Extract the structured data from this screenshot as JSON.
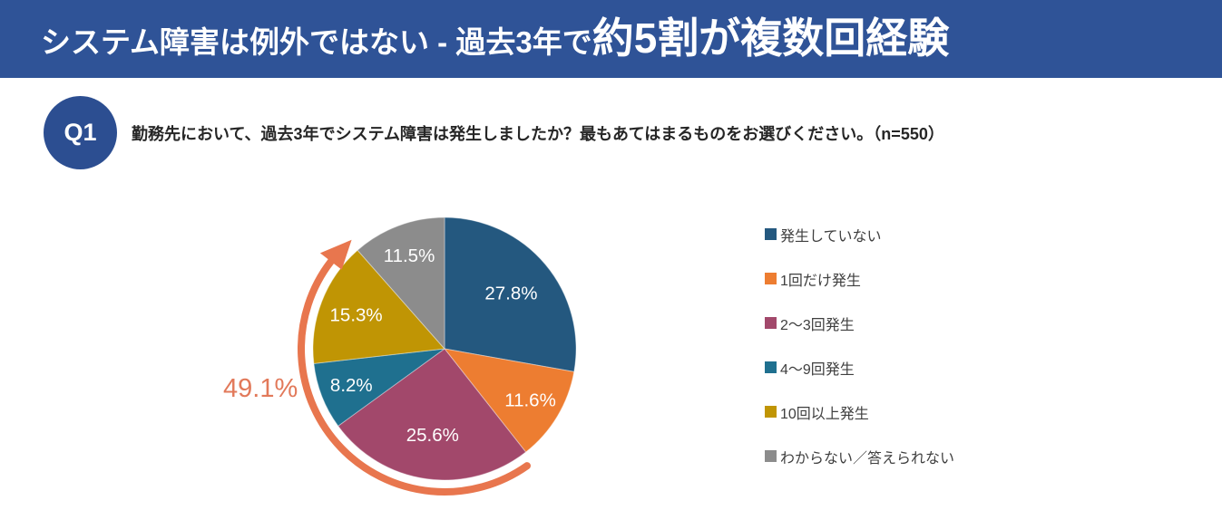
{
  "header": {
    "title_regular": "システム障害は例外ではない - 過去3年で",
    "title_emphasis": "約5割が複数回経験"
  },
  "question": {
    "badge": "Q1",
    "text": "勤務先において、過去3年でシステム障害は発生しましたか？最もあてはまるものをお選びください。（n=550）"
  },
  "chart_data": {
    "type": "pie",
    "start_angle_deg": 0,
    "direction": "clockwise",
    "categories": [
      "発生していない",
      "1回だけ発生",
      "2〜3回発生",
      "4〜9回発生",
      "10回以上発生",
      "わからない／答えられない"
    ],
    "values": [
      27.8,
      11.6,
      25.6,
      8.2,
      15.3,
      11.5
    ],
    "labels": [
      "27.8%",
      "11.6%",
      "25.6%",
      "8.2%",
      "15.3%",
      "11.5%"
    ],
    "colors": [
      "#24587F",
      "#ED7D31",
      "#A2486B",
      "#1F708F",
      "#C09504",
      "#8C8C8C"
    ],
    "legend_position": "right",
    "annotation": {
      "label": "49.1%",
      "covers_categories": [
        "2〜3回発生",
        "4〜9回発生",
        "10回以上発生"
      ],
      "color": "#E8764E"
    }
  }
}
